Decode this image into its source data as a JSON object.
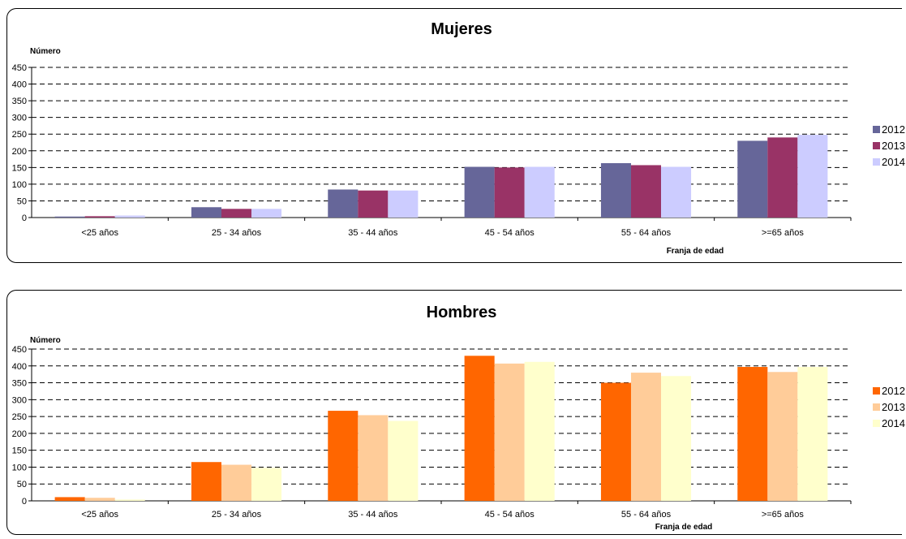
{
  "chart_data": [
    {
      "type": "bar",
      "title": "Mujeres",
      "ylabel": "Número",
      "xlabel": "Franja de edad",
      "categories": [
        "<25 años",
        "25 - 34 años",
        "35 - 44 años",
        "45 - 54 años",
        "55 - 64 años",
        ">=65 años"
      ],
      "ylim": [
        0,
        450
      ],
      "yticks": [
        0,
        50,
        100,
        150,
        200,
        250,
        300,
        350,
        400,
        450
      ],
      "grid": true,
      "legend_position": "right",
      "series": [
        {
          "name": "2012",
          "color": "#666699",
          "values": [
            3,
            31,
            84,
            152,
            163,
            230
          ]
        },
        {
          "name": "2013",
          "color": "#993366",
          "values": [
            4,
            26,
            81,
            150,
            157,
            240
          ]
        },
        {
          "name": "2014",
          "color": "#CCCCFF",
          "values": [
            6,
            26,
            81,
            152,
            152,
            248
          ]
        }
      ]
    },
    {
      "type": "bar",
      "title": "Hombres",
      "ylabel": "Número",
      "xlabel": "Franja de edad",
      "categories": [
        "<25 años",
        "25 - 34 años",
        "35 - 44 años",
        "45 - 54 años",
        "55 - 64 años",
        ">=65 años"
      ],
      "ylim": [
        0,
        450
      ],
      "yticks": [
        0,
        50,
        100,
        150,
        200,
        250,
        300,
        350,
        400,
        450
      ],
      "grid": true,
      "legend_position": "right",
      "series": [
        {
          "name": "2012",
          "color": "#FF6600",
          "values": [
            11,
            115,
            267,
            430,
            350,
            397
          ]
        },
        {
          "name": "2013",
          "color": "#FFCC99",
          "values": [
            9,
            107,
            254,
            407,
            380,
            382
          ]
        },
        {
          "name": "2014",
          "color": "#FFFFCC",
          "values": [
            4,
            98,
            237,
            412,
            370,
            397
          ]
        }
      ]
    }
  ]
}
